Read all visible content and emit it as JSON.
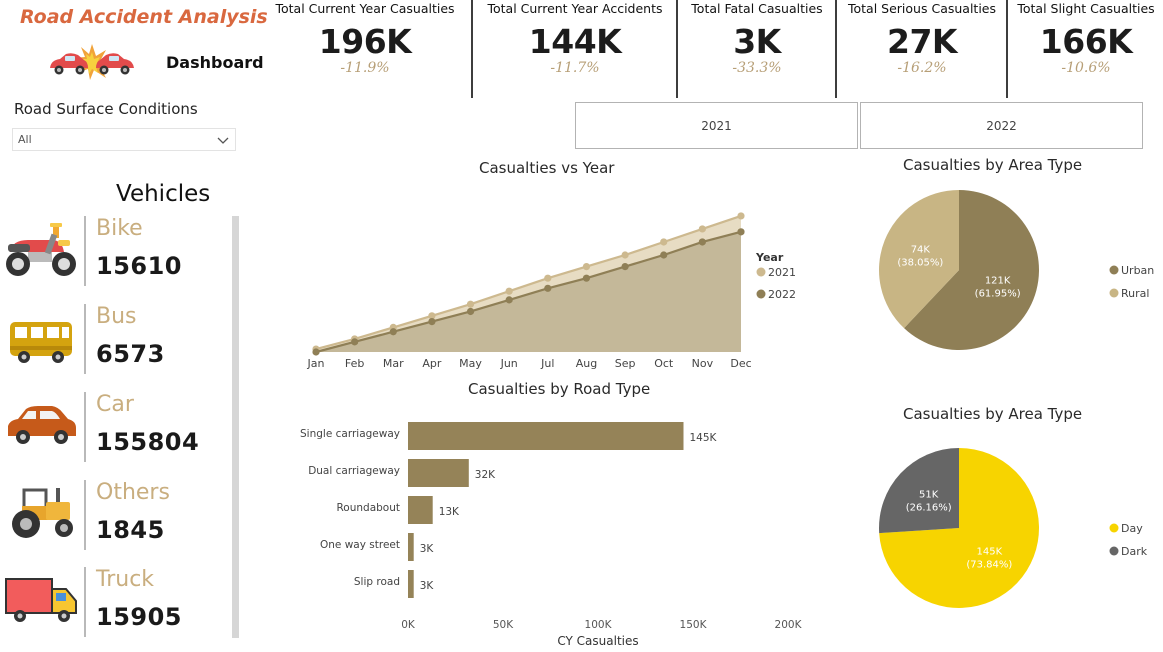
{
  "app": {
    "title": "Road Accident Analysis",
    "dashboard_label": "Dashboard"
  },
  "filter": {
    "label": "Road Surface Conditions",
    "value": "All"
  },
  "kpis": [
    {
      "title": "Total Current Year Casualties",
      "value": "196K",
      "change": "-11.9%"
    },
    {
      "title": "Total Current Year Accidents",
      "value": "144K",
      "change": "-11.7%"
    },
    {
      "title": "Total Fatal Casualties",
      "value": "3K",
      "change": "-33.3%"
    },
    {
      "title": "Total Serious Casualties",
      "value": "27K",
      "change": "-16.2%"
    },
    {
      "title": "Total Slight Casualties",
      "value": "166K",
      "change": "-10.6%"
    }
  ],
  "year_slicer": {
    "options": [
      "2021",
      "2022"
    ]
  },
  "vehicles": {
    "title": "Vehicles",
    "items": [
      {
        "name": "Bike",
        "count": "15610",
        "icon": "motorbike-icon"
      },
      {
        "name": "Bus",
        "count": "6573",
        "icon": "bus-icon"
      },
      {
        "name": "Car",
        "count": "155804",
        "icon": "car-icon"
      },
      {
        "name": "Others",
        "count": "1845",
        "icon": "tractor-icon"
      },
      {
        "name": "Truck",
        "count": "15905",
        "icon": "truck-icon"
      }
    ]
  },
  "colors": {
    "accent_title": "#d9683f",
    "tan": "#c8b584",
    "brown": "#8f7f56",
    "olive_dark": "#8d7d55",
    "day": "#f7d400",
    "dark": "#666666"
  },
  "chart_data": [
    {
      "id": "casualties-vs-year",
      "type": "area",
      "title": "Casualties vs Year",
      "legend_title": "Year",
      "legend_position": "right",
      "categories": [
        "Jan",
        "Feb",
        "Mar",
        "Apr",
        "May",
        "Jun",
        "Jul",
        "Aug",
        "Sep",
        "Oct",
        "Nov",
        "Dec"
      ],
      "series": [
        {
          "name": "2021",
          "color": "#cdb98f",
          "values": [
            0.02,
            0.09,
            0.17,
            0.25,
            0.33,
            0.42,
            0.51,
            0.59,
            0.67,
            0.76,
            0.85,
            0.94
          ]
        },
        {
          "name": "2022",
          "color": "#8f7f56",
          "values": [
            0.0,
            0.07,
            0.14,
            0.21,
            0.28,
            0.36,
            0.44,
            0.51,
            0.59,
            0.67,
            0.76,
            0.83
          ]
        }
      ],
      "ylim": [
        0,
        1.05
      ],
      "grid": false
    },
    {
      "id": "casualties-by-road-type",
      "type": "bar",
      "orientation": "horizontal",
      "title": "Casualties by Road Type",
      "xlabel": "CY Casualties",
      "categories": [
        "Single carriageway",
        "Dual carriageway",
        "Roundabout",
        "One way street",
        "Slip road"
      ],
      "values": [
        145000,
        32000,
        13000,
        3000,
        3000
      ],
      "value_labels": [
        "145K",
        "32K",
        "13K",
        "3K",
        "3K"
      ],
      "xlim": [
        0,
        200000
      ],
      "xticks": [
        0,
        50000,
        100000,
        150000,
        200000
      ],
      "xtick_labels": [
        "0K",
        "50K",
        "100K",
        "150K",
        "200K"
      ],
      "color": "#958358",
      "grid": false
    },
    {
      "id": "casualties-by-area-type-urban-rural",
      "type": "pie",
      "title": "Casualties by Area Type",
      "legend_position": "right",
      "slices": [
        {
          "label": "Urban",
          "value": 121000,
          "value_label": "121K",
          "percent_label": "(61.95%)",
          "color": "#8f7f56"
        },
        {
          "label": "Rural",
          "value": 74000,
          "value_label": "74K",
          "percent_label": "(38.05%)",
          "color": "#c8b584"
        }
      ]
    },
    {
      "id": "casualties-by-area-type-day-dark",
      "type": "pie",
      "title": "Casualties by Area Type",
      "legend_position": "right",
      "slices": [
        {
          "label": "Day",
          "value": 145000,
          "value_label": "145K",
          "percent_label": "(73.84%)",
          "color": "#f7d400"
        },
        {
          "label": "Dark",
          "value": 51000,
          "value_label": "51K",
          "percent_label": "(26.16%)",
          "color": "#666666"
        }
      ]
    }
  ]
}
